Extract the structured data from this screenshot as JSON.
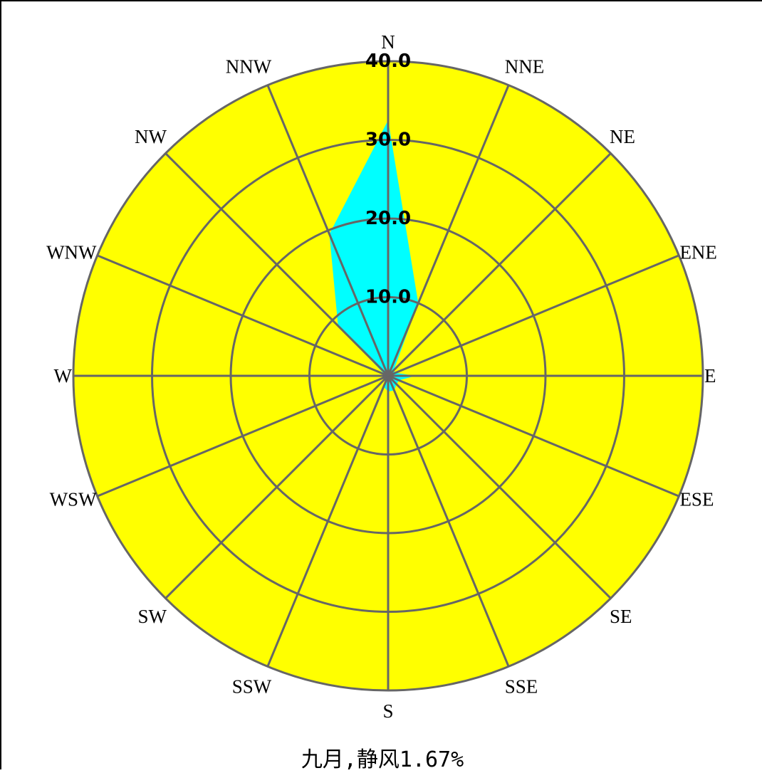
{
  "chart_data": {
    "type": "radar",
    "subtype": "wind rose",
    "directions": [
      "N",
      "NNE",
      "NE",
      "ENE",
      "E",
      "ESE",
      "SE",
      "SSE",
      "S",
      "SSW",
      "SW",
      "WSW",
      "W",
      "WNW",
      "NW",
      "NNW"
    ],
    "values": [
      32.5,
      10.0,
      1.0,
      1.0,
      3.5,
      1.5,
      1.5,
      2.0,
      2.0,
      1.5,
      0.5,
      0.5,
      0.5,
      0.5,
      9.0,
      19.5
    ],
    "rings": [
      "10.0",
      "20.0",
      "30.0",
      "40.0"
    ],
    "rmax": 40,
    "title": "九月,静风1.67%",
    "colors": {
      "background": "#ffff00",
      "data_fill": "#00ffff",
      "grid": "#666666"
    }
  }
}
